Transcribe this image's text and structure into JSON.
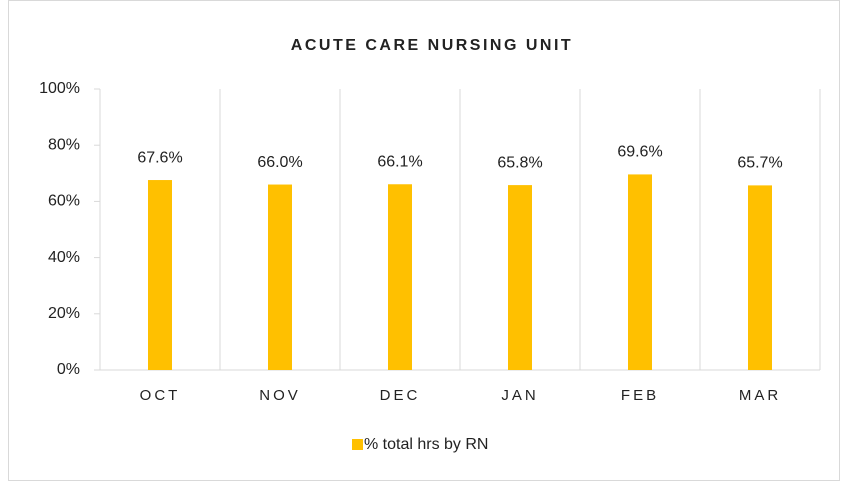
{
  "chart_data": {
    "type": "bar",
    "title": "ACUTE CARE NURSING UNIT",
    "categories": [
      "OCT",
      "NOV",
      "DEC",
      "JAN",
      "FEB",
      "MAR"
    ],
    "series": [
      {
        "name": "% total hrs by RN",
        "color": "#ffc000",
        "values": [
          67.6,
          66.0,
          66.1,
          65.8,
          69.6,
          65.7
        ],
        "value_labels": [
          "67.6%",
          "66.0%",
          "66.1%",
          "65.8%",
          "69.6%",
          "65.7%"
        ]
      }
    ],
    "ylim": [
      0,
      100
    ],
    "yticks": [
      {
        "value": 0,
        "label": "0%"
      },
      {
        "value": 20,
        "label": "20%"
      },
      {
        "value": 40,
        "label": "40%"
      },
      {
        "value": 60,
        "label": "60%"
      },
      {
        "value": 80,
        "label": "80%"
      },
      {
        "value": 100,
        "label": "100%"
      }
    ],
    "grid": "category",
    "legend": "bottom"
  }
}
